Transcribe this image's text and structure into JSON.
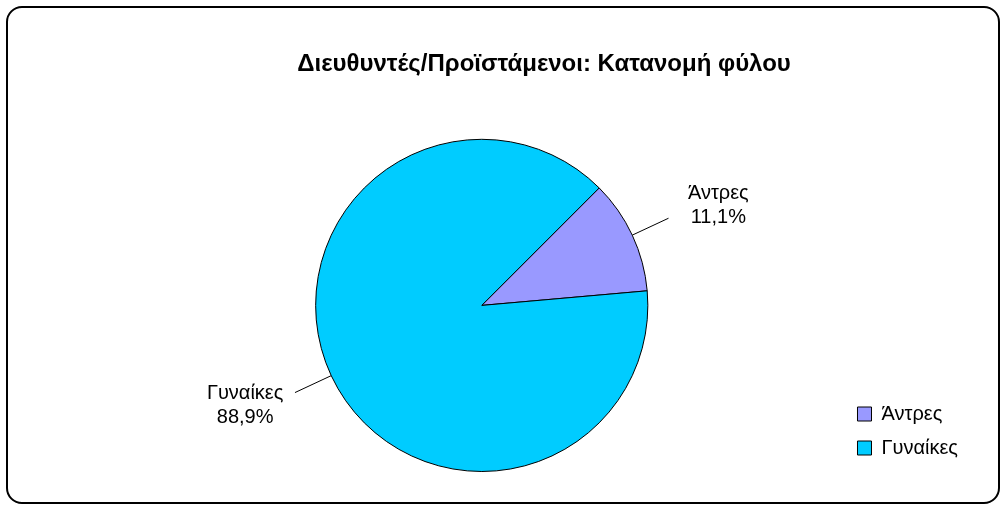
{
  "chart_data": {
    "type": "pie",
    "title": "Διευθυντές/Προϊστάμενοι: Κατανομή φύλου",
    "categories": [
      "Άντρες",
      "Γυναίκες"
    ],
    "values": [
      11.1,
      88.9
    ],
    "value_labels": [
      "11,1%",
      "88,9%"
    ],
    "colors": [
      "#9999ff",
      "#00ccff"
    ],
    "legend": "bottom right"
  }
}
